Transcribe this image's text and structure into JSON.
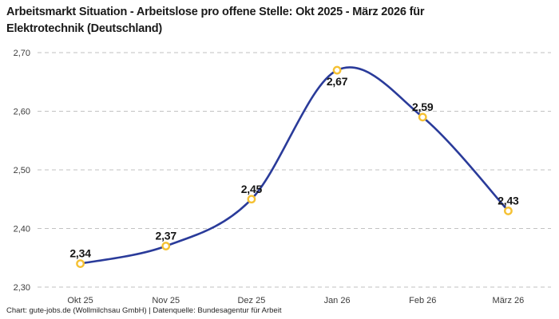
{
  "header": {
    "title": "Arbeitsmarkt Situation - Arbeitslose pro offene Stelle: Okt 2025 - März 2026 für Elektrotechnik (Deutschland)",
    "title_lines": [
      "Arbeitsmarkt Situation - Arbeitslose pro offene Stelle: Okt 2025 - März 2026 für",
      "Elektrotechnik (Deutschland)"
    ]
  },
  "chart_data": {
    "type": "line",
    "title": "Arbeitsmarkt Situation - Arbeitslose pro offene Stelle: Okt 2025 - März 2026 für Elektrotechnik (Deutschland)",
    "categories": [
      "Okt 25",
      "Nov 25",
      "Dez 25",
      "Jan 26",
      "Feb 26",
      "März 26"
    ],
    "values": [
      2.34,
      2.37,
      2.45,
      2.67,
      2.59,
      2.43
    ],
    "value_labels": [
      "2,34",
      "2,37",
      "2,45",
      "2,67",
      "2,59",
      "2,43"
    ],
    "label_position": [
      "above",
      "above",
      "above",
      "below",
      "above",
      "above"
    ],
    "xlabel": "",
    "ylabel": "",
    "ylim": [
      2.3,
      2.7
    ],
    "yticks": [
      2.3,
      2.4,
      2.5,
      2.6,
      2.7
    ],
    "ytick_labels": [
      "2,30",
      "2,40",
      "2,50",
      "2,60",
      "2,70"
    ],
    "grid": "horizontal-dashed",
    "legend": "none",
    "interpolation": "smooth-spline",
    "colors": {
      "line": "#2a3b9a",
      "marker_ring": "#f5c133",
      "marker_fill": "#ffffff",
      "gridline": "#c2c2c2",
      "tick_text": "#3c3c3c",
      "data_label_text": "#151515"
    }
  },
  "footer": {
    "credit": "Chart: gute-jobs.de (Wollmilchsau GmbH) | Datenquelle: Bundesagentur für Arbeit"
  }
}
